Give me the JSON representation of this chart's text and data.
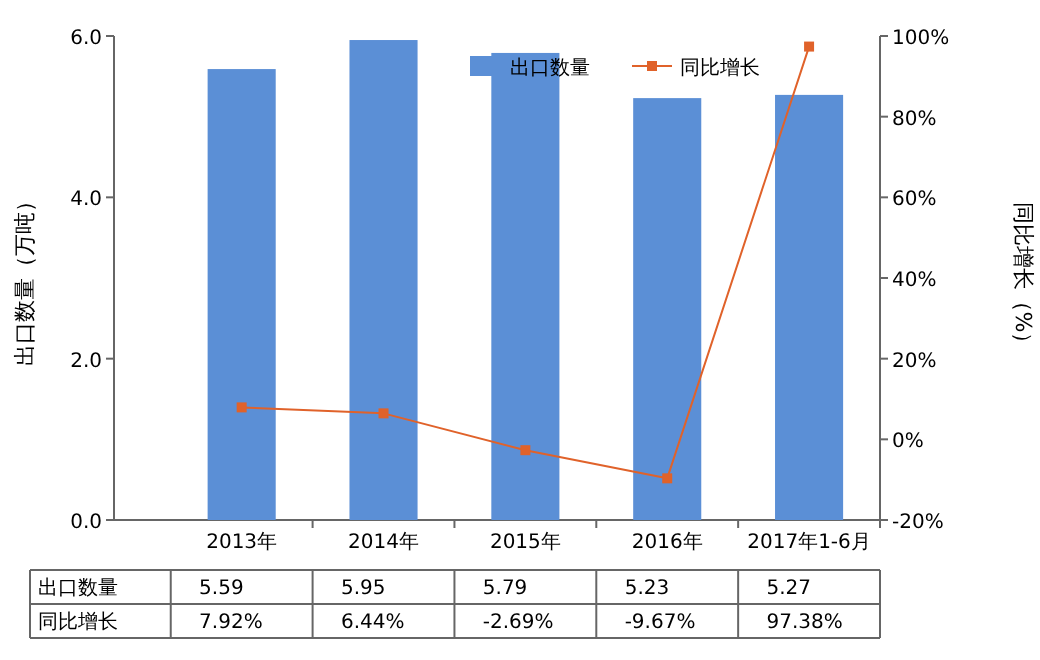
{
  "chart_data": {
    "type": "bar",
    "categories": [
      "2013年",
      "2014年",
      "2015年",
      "2016年",
      "2017年1-6月"
    ],
    "ylabel": "出口数量（万吨）",
    "y2label": "同比增长（%）",
    "ylim": [
      0,
      6
    ],
    "yticks": [
      {
        "value": 0,
        "label": "0.0"
      },
      {
        "value": 2,
        "label": "2.0"
      },
      {
        "value": 4,
        "label": "4.0"
      },
      {
        "value": 6,
        "label": "6.0"
      }
    ],
    "y2lim": [
      -20,
      100
    ],
    "y2ticks": [
      {
        "value": -20,
        "label": "-20%"
      },
      {
        "value": 0,
        "label": "0%"
      },
      {
        "value": 20,
        "label": "20%"
      },
      {
        "value": 40,
        "label": "40%"
      },
      {
        "value": 60,
        "label": "60%"
      },
      {
        "value": 80,
        "label": "80%"
      },
      {
        "value": 100,
        "label": "100%"
      }
    ],
    "legend": "top right",
    "grid": false,
    "series": [
      {
        "name": "出口数量",
        "color": "#5b8fd6",
        "values": [
          5.59,
          5.95,
          5.79,
          5.23,
          5.27
        ],
        "value_labels": [
          "5.59",
          "5.95",
          "5.79",
          "5.23",
          "5.27"
        ]
      },
      {
        "name": "同比增长",
        "type": "line",
        "axis": "y2",
        "color": "#e0622a",
        "marker": "square",
        "values": [
          7.92,
          6.44,
          -2.69,
          -9.67,
          97.38
        ],
        "value_labels": [
          "7.92%",
          "6.44%",
          "-2.69%",
          "-9.67%",
          "97.38%"
        ]
      }
    ]
  }
}
